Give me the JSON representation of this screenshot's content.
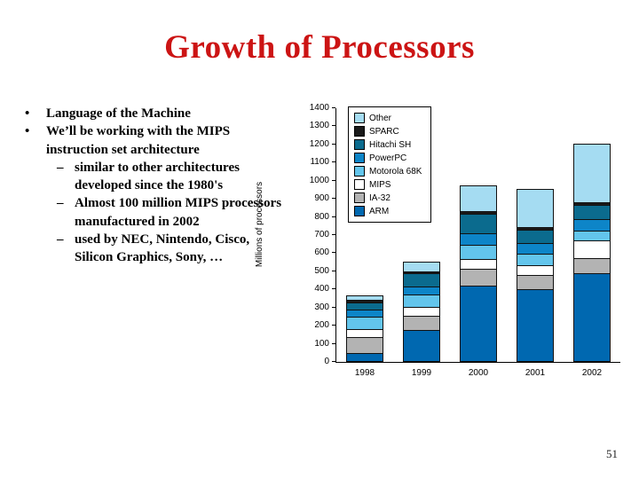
{
  "slide": {
    "title": "Growth of Processors",
    "page_number": "51"
  },
  "bullets": [
    {
      "marker": "•",
      "text": "Language of the Machine",
      "subs": []
    },
    {
      "marker": "•",
      "text": "We’ll be working with the MIPS instruction set architecture",
      "subs": [
        {
          "marker": "–",
          "text": "similar to other architectures developed since the 1980's"
        },
        {
          "marker": "–",
          "text": "Almost 100 million MIPS processors manufactured in 2002"
        },
        {
          "marker": "–",
          "text": "used by NEC, Nintendo, Cisco, Silicon Graphics, Sony, …"
        }
      ]
    }
  ],
  "chart_data": {
    "type": "bar",
    "stacked": true,
    "title": "",
    "xlabel": "",
    "ylabel": "Millions of processors",
    "ylim": [
      0,
      1400
    ],
    "ytick_step": 100,
    "grid": false,
    "legend_position": "upper-left",
    "categories": [
      "1998",
      "1999",
      "2000",
      "2001",
      "2002"
    ],
    "series": [
      {
        "name": "ARM",
        "color": "#0068b0",
        "values": [
          50,
          175,
          420,
          400,
          490
        ]
      },
      {
        "name": "IA-32",
        "color": "#b3b3b3",
        "values": [
          90,
          85,
          100,
          85,
          90
        ]
      },
      {
        "name": "MIPS",
        "color": "#ffffff",
        "values": [
          50,
          55,
          60,
          60,
          100
        ]
      },
      {
        "name": "Motorola 68K",
        "color": "#63c5ec",
        "values": [
          75,
          70,
          80,
          65,
          60
        ]
      },
      {
        "name": "PowerPC",
        "color": "#0d85c8",
        "values": [
          45,
          50,
          70,
          65,
          70
        ]
      },
      {
        "name": "Hitachi SH",
        "color": "#0b6b8e",
        "values": [
          45,
          80,
          110,
          80,
          80
        ]
      },
      {
        "name": "SPARC",
        "color": "#1a1a1a",
        "values": [
          15,
          15,
          20,
          20,
          20
        ]
      },
      {
        "name": "Other",
        "color": "#a5dcf2",
        "values": [
          30,
          60,
          150,
          215,
          330
        ]
      }
    ],
    "legend_order": [
      "Other",
      "SPARC",
      "Hitachi SH",
      "PowerPC",
      "Motorola 68K",
      "MIPS",
      "IA-32",
      "ARM"
    ]
  }
}
